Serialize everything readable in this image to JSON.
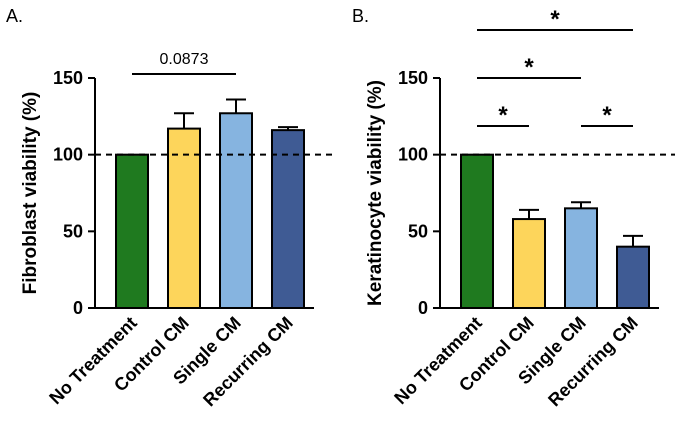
{
  "chart_data": [
    {
      "type": "bar",
      "panel": "A.",
      "ylabel": "Fibroblast viability (%)",
      "xlabel": "",
      "ylim": [
        0,
        150
      ],
      "yticks": [
        0,
        50,
        100,
        150
      ],
      "reference_line": 100,
      "categories": [
        "No Treatment",
        "Control CM",
        "Single CM",
        "Recurring CM"
      ],
      "values": [
        100,
        117,
        127,
        116
      ],
      "errors": [
        0,
        10,
        9,
        2
      ],
      "colors": [
        "#1f7a1f",
        "#fdd55b",
        "#86b4e0",
        "#3f5b94"
      ],
      "comparisons": [
        {
          "from": 0,
          "to": 2,
          "label": "0.0873"
        }
      ]
    },
    {
      "type": "bar",
      "panel": "B.",
      "ylabel": "Keratinocyte viability (%)",
      "xlabel": "",
      "ylim": [
        0,
        150
      ],
      "yticks": [
        0,
        50,
        100,
        150
      ],
      "reference_line": 100,
      "categories": [
        "No Treatment",
        "Control CM",
        "Single CM",
        "Recurring CM"
      ],
      "values": [
        100,
        58,
        65,
        40
      ],
      "errors": [
        0,
        6,
        4,
        7
      ],
      "colors": [
        "#1f7a1f",
        "#fdd55b",
        "#86b4e0",
        "#3f5b94"
      ],
      "comparisons": [
        {
          "from": 0,
          "to": 1,
          "label": "*"
        },
        {
          "from": 2,
          "to": 3,
          "label": "*"
        },
        {
          "from": 0,
          "to": 2,
          "label": "*"
        },
        {
          "from": 0,
          "to": 3,
          "label": "*"
        }
      ]
    }
  ]
}
